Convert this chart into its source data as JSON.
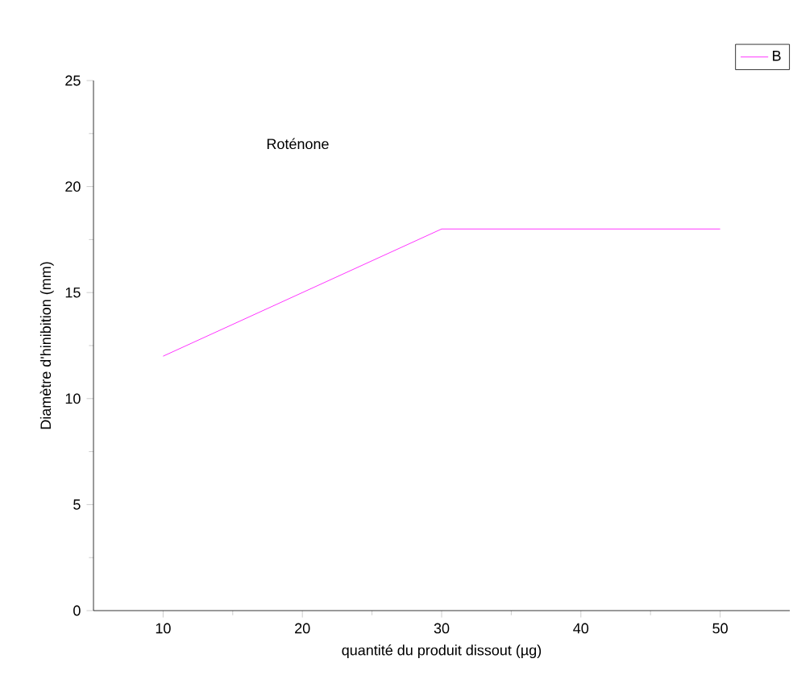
{
  "chart_data": {
    "type": "line",
    "xlabel": "quantité du produit dissout (µg)",
    "ylabel": "Diamètre d'hinibition (mm)",
    "annotations": [
      "Roténone"
    ],
    "x": [
      10,
      30,
      50
    ],
    "series": [
      {
        "name": "B",
        "color": "#ff00ff",
        "values": [
          12,
          18,
          18
        ]
      }
    ],
    "xlim": [
      5,
      55
    ],
    "ylim": [
      0,
      25
    ],
    "xticks": [
      10,
      20,
      30,
      40,
      50
    ],
    "yticks": [
      0,
      5,
      10,
      15,
      20,
      25
    ],
    "legend": "top right",
    "grid": false,
    "marker": "none",
    "line_style": "solid"
  }
}
